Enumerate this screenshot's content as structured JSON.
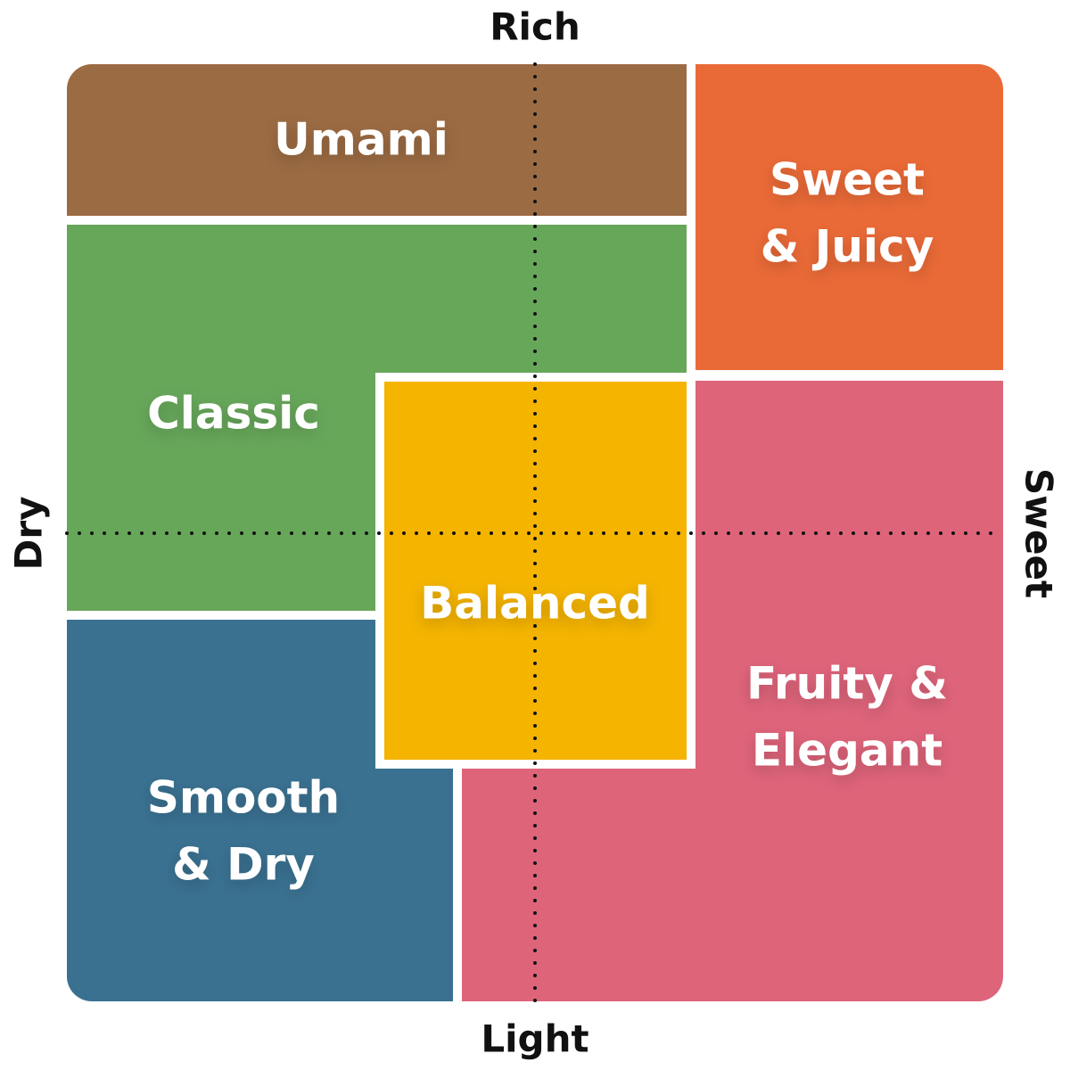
{
  "axes": {
    "top": "Rich",
    "bottom": "Light",
    "left": "Dry",
    "right": "Sweet"
  },
  "regions": {
    "umami": {
      "lines": [
        "Umami"
      ],
      "color": "#9B6B43"
    },
    "sweet_juicy": {
      "lines": [
        "Sweet",
        "& Juicy"
      ],
      "color": "#EA6A37"
    },
    "classic": {
      "lines": [
        "Classic"
      ],
      "color": "#67A75A"
    },
    "balanced": {
      "lines": [
        "Balanced"
      ],
      "color": "#F5B400"
    },
    "smooth_dry": {
      "lines": [
        "Smooth",
        "& Dry"
      ],
      "color": "#3A7191"
    },
    "fruity_elegant": {
      "lines": [
        "Fruity &",
        "Elegant"
      ],
      "color": "#DE647A"
    }
  }
}
